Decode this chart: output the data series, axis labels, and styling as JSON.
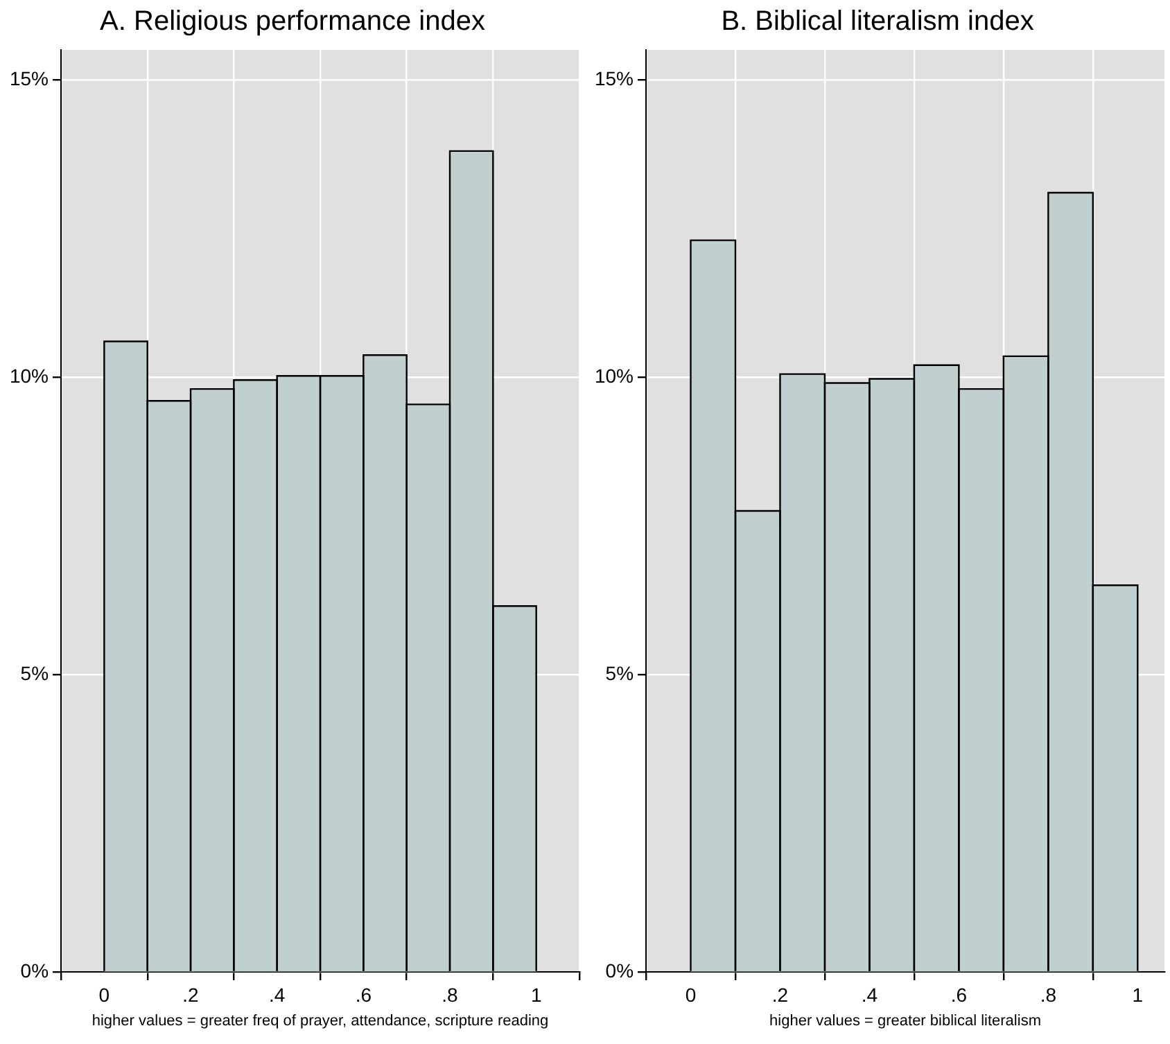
{
  "chart_data": [
    {
      "type": "histogram",
      "title": "A. Religious performance index",
      "xlabel": "higher values = greater freq of prayer, attendance, scripture reading",
      "bins": [
        0,
        0.1,
        0.2,
        0.3,
        0.4,
        0.5,
        0.6,
        0.7,
        0.8,
        0.9,
        1
      ],
      "values": [
        10.6,
        9.6,
        9.8,
        9.95,
        10.02,
        10.02,
        10.37,
        9.54,
        13.8,
        6.15
      ],
      "color": "#c0d0d0",
      "xlim": [
        -0.1,
        1.1
      ],
      "xticks": [
        {
          "value": 0,
          "label": "0"
        },
        {
          "value": 0.2,
          "label": ".2"
        },
        {
          "value": 0.4,
          "label": ".4"
        },
        {
          "value": 0.6,
          "label": ".6"
        },
        {
          "value": 0.8,
          "label": ".8"
        },
        {
          "value": 1,
          "label": "1"
        }
      ],
      "ylim": [
        0,
        15.5
      ],
      "yticks": [
        {
          "value": 0,
          "label": "0%"
        },
        {
          "value": 5,
          "label": "5%"
        },
        {
          "value": 10,
          "label": "10%"
        },
        {
          "value": 15,
          "label": "15%"
        }
      ],
      "grid": true,
      "legend": false
    },
    {
      "type": "histogram",
      "title": "B. Biblical literalism index",
      "xlabel": "higher values = greater biblical literalism",
      "bins": [
        0,
        0.1,
        0.2,
        0.3,
        0.4,
        0.5,
        0.6,
        0.7,
        0.8,
        0.9,
        1
      ],
      "values": [
        12.3,
        7.75,
        10.05,
        9.9,
        9.97,
        10.2,
        9.8,
        10.35,
        13.1,
        6.5
      ],
      "color": "#c0d0d0",
      "xlim": [
        -0.1,
        1.06
      ],
      "xticks": [
        {
          "value": 0,
          "label": "0"
        },
        {
          "value": 0.2,
          "label": ".2"
        },
        {
          "value": 0.4,
          "label": ".4"
        },
        {
          "value": 0.6,
          "label": ".6"
        },
        {
          "value": 0.8,
          "label": ".8"
        },
        {
          "value": 1,
          "label": "1"
        }
      ],
      "ylim": [
        0,
        15.5
      ],
      "yticks": [
        {
          "value": 0,
          "label": "0%"
        },
        {
          "value": 5,
          "label": "5%"
        },
        {
          "value": 10,
          "label": "10%"
        },
        {
          "value": 15,
          "label": "15%"
        }
      ],
      "grid": true,
      "legend": false
    }
  ]
}
